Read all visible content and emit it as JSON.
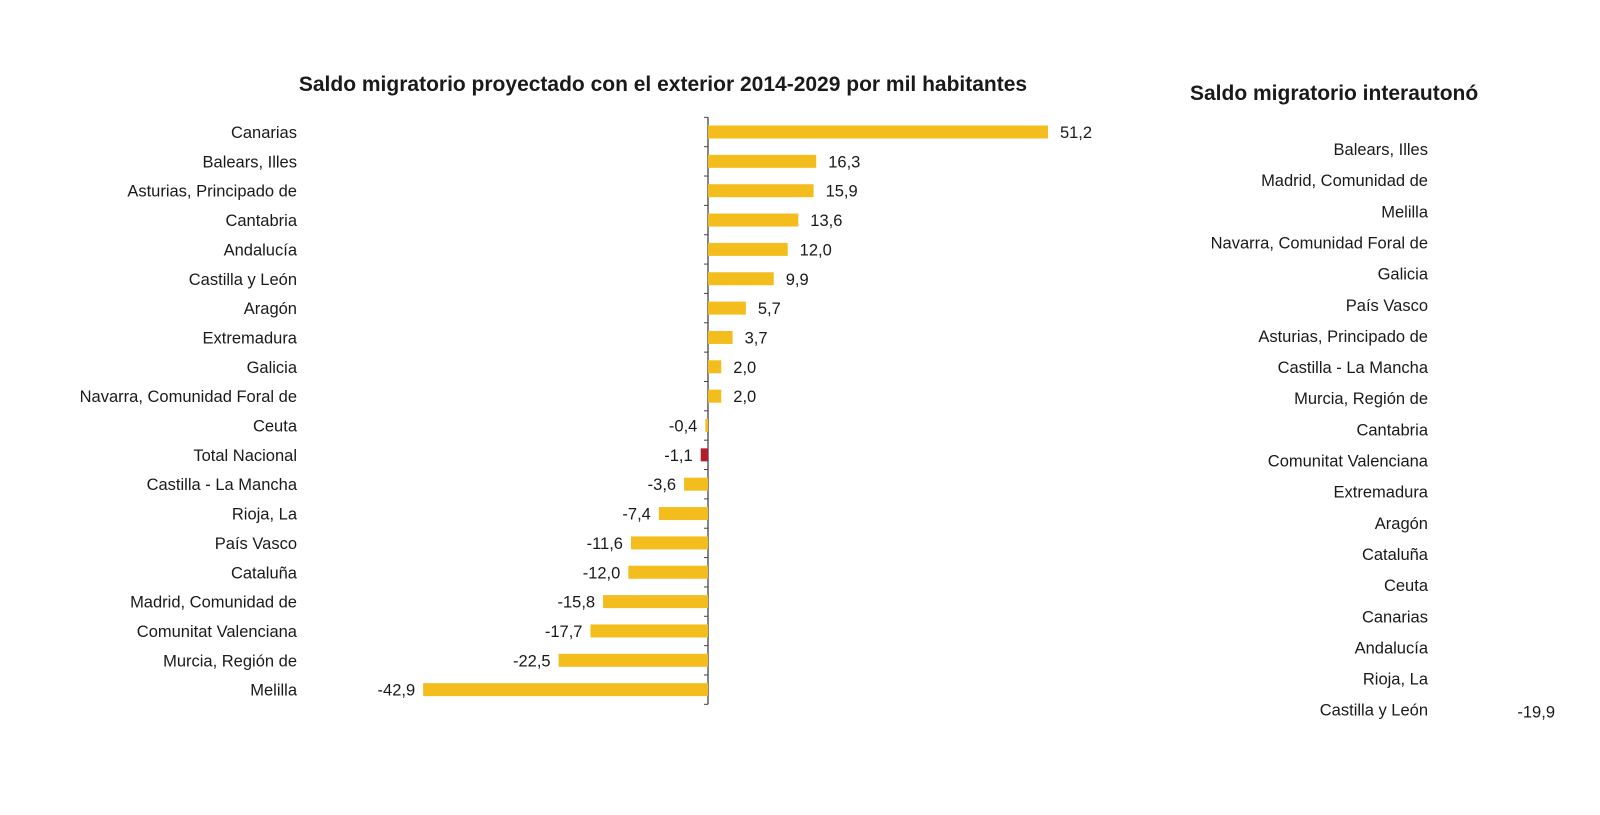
{
  "chart_data": [
    {
      "type": "bar",
      "orientation": "horizontal",
      "title": "Saldo migratorio proyectado con el exterior 2014-2029 por mil habitantes",
      "categories": [
        "Canarias",
        "Balears, Illes",
        "Asturias, Principado de",
        "Cantabria",
        "Andalucía",
        "Castilla y León",
        "Aragón",
        "Extremadura",
        "Galicia",
        "Navarra, Comunidad Foral de",
        "Ceuta",
        "Total Nacional",
        "Castilla - La Mancha",
        "Rioja, La",
        "País Vasco",
        "Cataluña",
        "Madrid, Comunidad de",
        "Comunitat Valenciana",
        "Murcia, Región de",
        "Melilla"
      ],
      "values": [
        51.2,
        16.3,
        15.9,
        13.6,
        12.0,
        9.9,
        5.7,
        3.7,
        2.0,
        2.0,
        -0.4,
        -1.1,
        -3.6,
        -7.4,
        -11.6,
        -12.0,
        -15.8,
        -17.7,
        -22.5,
        -42.9
      ],
      "data_labels": [
        "51,2",
        "16,3",
        "15,9",
        "13,6",
        "12,0",
        "9,9",
        "5,7",
        "3,7",
        "2,0",
        "2,0",
        "-0,4",
        "-1,1",
        "-3,6",
        "-7,4",
        "-11,6",
        "-12,0",
        "-15,8",
        "-17,7",
        "-22,5",
        "-42,9"
      ],
      "highlight_category": "Total Nacional",
      "colors": {
        "bar": "#F2BD1D",
        "highlight": "#B01E2D",
        "axis": "#444444"
      },
      "xlim": [
        -45,
        55
      ],
      "grid": false,
      "legend": "none"
    },
    {
      "type": "bar",
      "orientation": "horizontal",
      "title": "Saldo migratorio interautonó",
      "categories": [
        "Balears, Illes",
        "Madrid, Comunidad de",
        "Melilla",
        "Navarra, Comunidad Foral de",
        "Galicia",
        "País Vasco",
        "Asturias, Principado de",
        "Castilla - La Mancha",
        "Murcia, Región de",
        "Cantabria",
        "Comunitat Valenciana",
        "Extremadura",
        "Aragón",
        "Cataluña",
        "Ceuta",
        "Canarias",
        "Andalucía",
        "Rioja, La",
        "Castilla y León"
      ],
      "visible_data_labels": {
        "Castilla y León": "-19,9"
      },
      "grid": false,
      "legend": "none"
    }
  ]
}
